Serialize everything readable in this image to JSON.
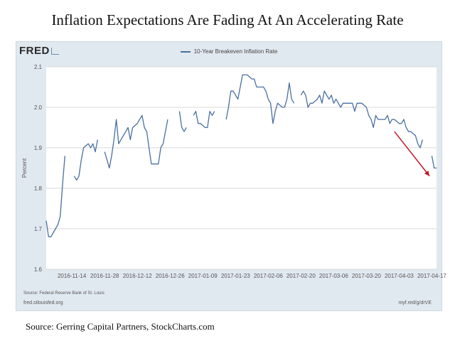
{
  "headline": "Inflation Expectations Are Fading At An Accelerating Rate",
  "caption": "Source: Gerring Capital Partners, StockCharts.com",
  "fred": {
    "logo_text": "FRED",
    "source_note": "Source: Federal Reserve Bank of St. Louis",
    "site": "fred.stlouisfed.org",
    "short_url": "myf.red/g/drVE"
  },
  "colors": {
    "line": "#4a6fa0",
    "panel_bg": "#e1e9f0",
    "plot_bg": "#ffffff",
    "arrow": "#c0182a",
    "grid": "#d9d9d9"
  },
  "chart_data": {
    "type": "line",
    "title": "",
    "xlabel": "",
    "ylabel": "Percent",
    "ylim": [
      1.6,
      2.1
    ],
    "yticks": [
      1.6,
      1.7,
      1.8,
      1.9,
      2.0,
      2.1
    ],
    "ytick_labels": [
      "1.6",
      "1.7",
      "1.8",
      "1.9",
      "2.0",
      "2.1"
    ],
    "xlim": [
      "2016-11-03",
      "2017-04-19"
    ],
    "xticks": [
      "2016-11-14",
      "2016-11-28",
      "2016-12-12",
      "2016-12-26",
      "2017-01-09",
      "2017-01-23",
      "2017-02-06",
      "2017-02-20",
      "2017-03-06",
      "2017-03-20",
      "2017-04-03",
      "2017-04-17"
    ],
    "grid": "horizontal",
    "legend_position": "top-center",
    "series": [
      {
        "name": "10-Year Breakeven Inflation Rate",
        "segments": [
          [
            [
              "2016-11-03",
              1.72
            ],
            [
              "2016-11-04",
              1.68
            ],
            [
              "2016-11-05",
              1.68
            ],
            [
              "2016-11-07",
              1.7
            ],
            [
              "2016-11-08",
              1.71
            ],
            [
              "2016-11-09",
              1.73
            ],
            [
              "2016-11-10",
              1.81
            ],
            [
              "2016-11-11",
              1.88
            ]
          ],
          [
            [
              "2016-11-15",
              1.83
            ],
            [
              "2016-11-16",
              1.82
            ],
            [
              "2016-11-17",
              1.83
            ],
            [
              "2016-11-18",
              1.87
            ],
            [
              "2016-11-19",
              1.9
            ],
            [
              "2016-11-21",
              1.91
            ],
            [
              "2016-11-22",
              1.9
            ],
            [
              "2016-11-23",
              1.91
            ],
            [
              "2016-11-24",
              1.89
            ],
            [
              "2016-11-25",
              1.92
            ]
          ],
          [
            [
              "2016-11-28",
              1.89
            ],
            [
              "2016-11-29",
              1.87
            ],
            [
              "2016-11-30",
              1.85
            ],
            [
              "2016-12-01",
              1.88
            ],
            [
              "2016-12-02",
              1.92
            ],
            [
              "2016-12-03",
              1.97
            ],
            [
              "2016-12-04",
              1.91
            ],
            [
              "2016-12-05",
              1.92
            ],
            [
              "2016-12-06",
              1.93
            ],
            [
              "2016-12-07",
              1.94
            ],
            [
              "2016-12-08",
              1.95
            ],
            [
              "2016-12-09",
              1.92
            ],
            [
              "2016-12-10",
              1.95
            ],
            [
              "2016-12-12",
              1.96
            ],
            [
              "2016-12-13",
              1.97
            ],
            [
              "2016-12-14",
              1.98
            ],
            [
              "2016-12-15",
              1.95
            ],
            [
              "2016-12-16",
              1.94
            ],
            [
              "2016-12-17",
              1.9
            ],
            [
              "2016-12-18",
              1.86
            ],
            [
              "2016-12-19",
              1.86
            ],
            [
              "2016-12-20",
              1.86
            ],
            [
              "2016-12-21",
              1.86
            ],
            [
              "2016-12-22",
              1.9
            ],
            [
              "2016-12-23",
              1.91
            ],
            [
              "2016-12-24",
              1.94
            ],
            [
              "2016-12-25",
              1.97
            ]
          ],
          [
            [
              "2016-12-30",
              1.99
            ],
            [
              "2016-12-31",
              1.95
            ],
            [
              "2017-01-01",
              1.94
            ],
            [
              "2017-01-02",
              1.95
            ]
          ],
          [
            [
              "2017-01-05",
              1.98
            ],
            [
              "2017-01-06",
              1.99
            ],
            [
              "2017-01-07",
              1.96
            ],
            [
              "2017-01-08",
              1.96
            ],
            [
              "2017-01-10",
              1.95
            ],
            [
              "2017-01-11",
              1.95
            ],
            [
              "2017-01-12",
              1.99
            ],
            [
              "2017-01-13",
              1.98
            ],
            [
              "2017-01-14",
              1.99
            ]
          ],
          [
            [
              "2017-01-19",
              1.97
            ],
            [
              "2017-01-20",
              2.0
            ],
            [
              "2017-01-21",
              2.04
            ],
            [
              "2017-01-22",
              2.04
            ],
            [
              "2017-01-23",
              2.03
            ],
            [
              "2017-01-24",
              2.02
            ],
            [
              "2017-01-25",
              2.05
            ],
            [
              "2017-01-26",
              2.08
            ],
            [
              "2017-01-27",
              2.08
            ],
            [
              "2017-01-28",
              2.08
            ],
            [
              "2017-01-30",
              2.07
            ],
            [
              "2017-01-31",
              2.07
            ],
            [
              "2017-02-01",
              2.05
            ],
            [
              "2017-02-02",
              2.05
            ],
            [
              "2017-02-03",
              2.05
            ],
            [
              "2017-02-04",
              2.05
            ],
            [
              "2017-02-05",
              2.04
            ],
            [
              "2017-02-06",
              2.02
            ],
            [
              "2017-02-07",
              2.01
            ],
            [
              "2017-02-08",
              1.96
            ],
            [
              "2017-02-09",
              1.99
            ],
            [
              "2017-02-10",
              2.01
            ],
            [
              "2017-02-12",
              2.0
            ],
            [
              "2017-02-13",
              2.0
            ],
            [
              "2017-02-14",
              2.02
            ],
            [
              "2017-02-15",
              2.06
            ],
            [
              "2017-02-16",
              2.02
            ],
            [
              "2017-02-17",
              2.01
            ]
          ],
          [
            [
              "2017-02-20",
              2.03
            ],
            [
              "2017-02-21",
              2.04
            ],
            [
              "2017-02-22",
              2.03
            ],
            [
              "2017-02-23",
              2.0
            ],
            [
              "2017-02-24",
              2.01
            ],
            [
              "2017-02-25",
              2.01
            ],
            [
              "2017-02-27",
              2.02
            ],
            [
              "2017-02-28",
              2.03
            ],
            [
              "2017-03-01",
              2.01
            ],
            [
              "2017-03-02",
              2.04
            ],
            [
              "2017-03-03",
              2.03
            ],
            [
              "2017-03-04",
              2.02
            ],
            [
              "2017-03-05",
              2.03
            ],
            [
              "2017-03-06",
              2.01
            ],
            [
              "2017-03-07",
              2.02
            ],
            [
              "2017-03-08",
              2.01
            ],
            [
              "2017-03-09",
              2.0
            ],
            [
              "2017-03-10",
              2.01
            ],
            [
              "2017-03-11",
              2.01
            ],
            [
              "2017-03-13",
              2.01
            ],
            [
              "2017-03-14",
              2.01
            ],
            [
              "2017-03-15",
              1.99
            ],
            [
              "2017-03-16",
              2.01
            ],
            [
              "2017-03-17",
              2.01
            ],
            [
              "2017-03-18",
              2.01
            ],
            [
              "2017-03-20",
              2.0
            ],
            [
              "2017-03-21",
              1.98
            ],
            [
              "2017-03-22",
              1.97
            ],
            [
              "2017-03-23",
              1.95
            ],
            [
              "2017-03-24",
              1.98
            ],
            [
              "2017-03-25",
              1.97
            ],
            [
              "2017-03-27",
              1.97
            ],
            [
              "2017-03-28",
              1.97
            ],
            [
              "2017-03-29",
              1.98
            ],
            [
              "2017-03-30",
              1.96
            ],
            [
              "2017-03-31",
              1.97
            ],
            [
              "2017-04-01",
              1.97
            ],
            [
              "2017-04-03",
              1.96
            ],
            [
              "2017-04-04",
              1.96
            ],
            [
              "2017-04-05",
              1.97
            ],
            [
              "2017-04-06",
              1.95
            ],
            [
              "2017-04-07",
              1.94
            ],
            [
              "2017-04-08",
              1.94
            ],
            [
              "2017-04-10",
              1.93
            ],
            [
              "2017-04-11",
              1.91
            ],
            [
              "2017-04-12",
              1.9
            ],
            [
              "2017-04-13",
              1.92
            ]
          ],
          [
            [
              "2017-04-17",
              1.88
            ],
            [
              "2017-04-18",
              1.85
            ],
            [
              "2017-04-19",
              1.85
            ]
          ]
        ]
      }
    ],
    "annotations": [
      {
        "type": "arrow",
        "color": "#c0182a",
        "from": [
          "2017-04-01",
          1.94
        ],
        "to": [
          "2017-04-16",
          1.83
        ]
      }
    ]
  }
}
